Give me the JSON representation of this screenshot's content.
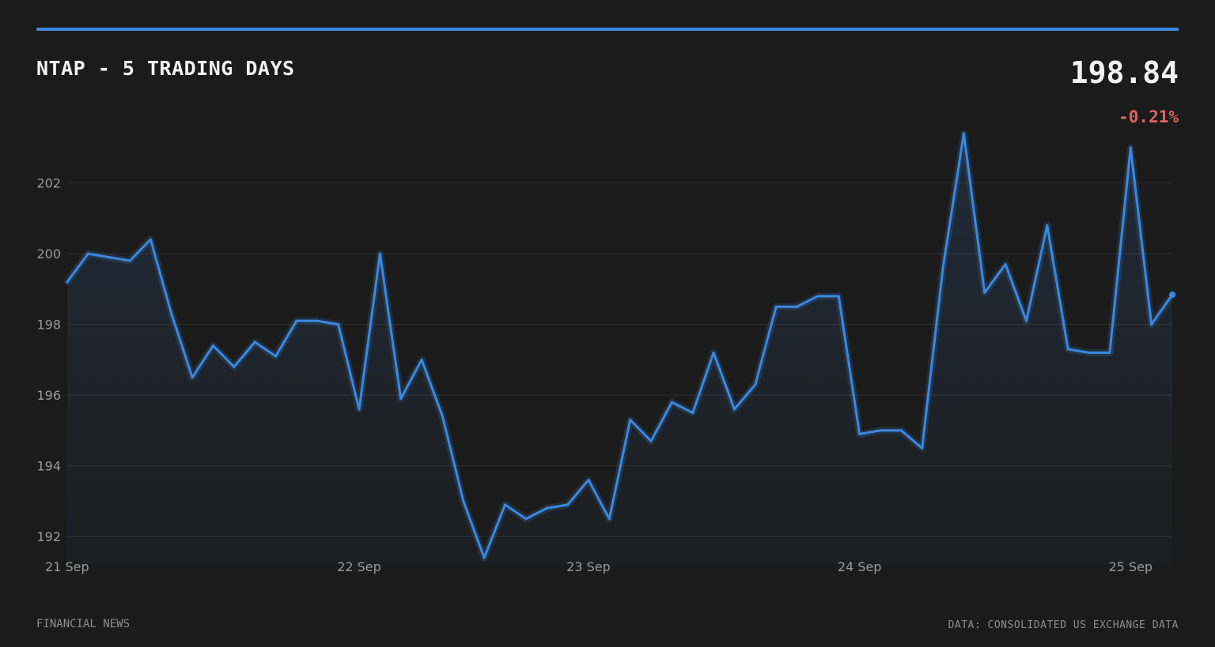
{
  "header": {
    "title": "NTAP - 5 TRADING DAYS",
    "price": "198.84",
    "change": "-0.21%"
  },
  "footer": {
    "left": "FINANCIAL NEWS",
    "right": "DATA: CONSOLIDATED US EXCHANGE DATA"
  },
  "colors": {
    "accent": "#3b88e0",
    "negative": "#e06262",
    "background": "#1b1b1b",
    "grid": "#2e2e2e"
  },
  "chart_data": {
    "type": "line",
    "title": "NTAP - 5 TRADING DAYS",
    "xlabel": "",
    "ylabel": "",
    "x_tick_labels": [
      "21 Sep",
      "22 Sep",
      "23 Sep",
      "24 Sep",
      "25 Sep"
    ],
    "x_tick_positions": [
      0,
      14,
      25,
      38,
      51
    ],
    "y_ticks": [
      192,
      194,
      196,
      198,
      200,
      202
    ],
    "ylim": [
      191.2,
      203.6
    ],
    "grid": "horizontal",
    "series": [
      {
        "values": [
          199.2,
          200.0,
          199.9,
          199.8,
          200.4,
          198.3,
          196.5,
          197.4,
          196.8,
          197.5,
          197.1,
          198.1,
          198.1,
          198.0,
          195.6,
          200.0,
          195.9,
          197.0,
          195.4,
          193.0,
          191.4,
          192.9,
          192.5,
          192.8,
          192.9,
          193.6,
          192.5,
          195.3,
          194.7,
          195.8,
          195.5,
          197.2,
          195.6,
          196.3,
          198.5,
          198.5,
          198.8,
          198.8,
          194.9,
          195.0,
          195.0,
          194.5,
          199.6,
          203.4,
          198.9,
          199.7,
          198.1,
          200.8,
          197.3,
          197.2,
          197.2,
          203.0,
          198.0,
          198.84
        ]
      }
    ]
  }
}
